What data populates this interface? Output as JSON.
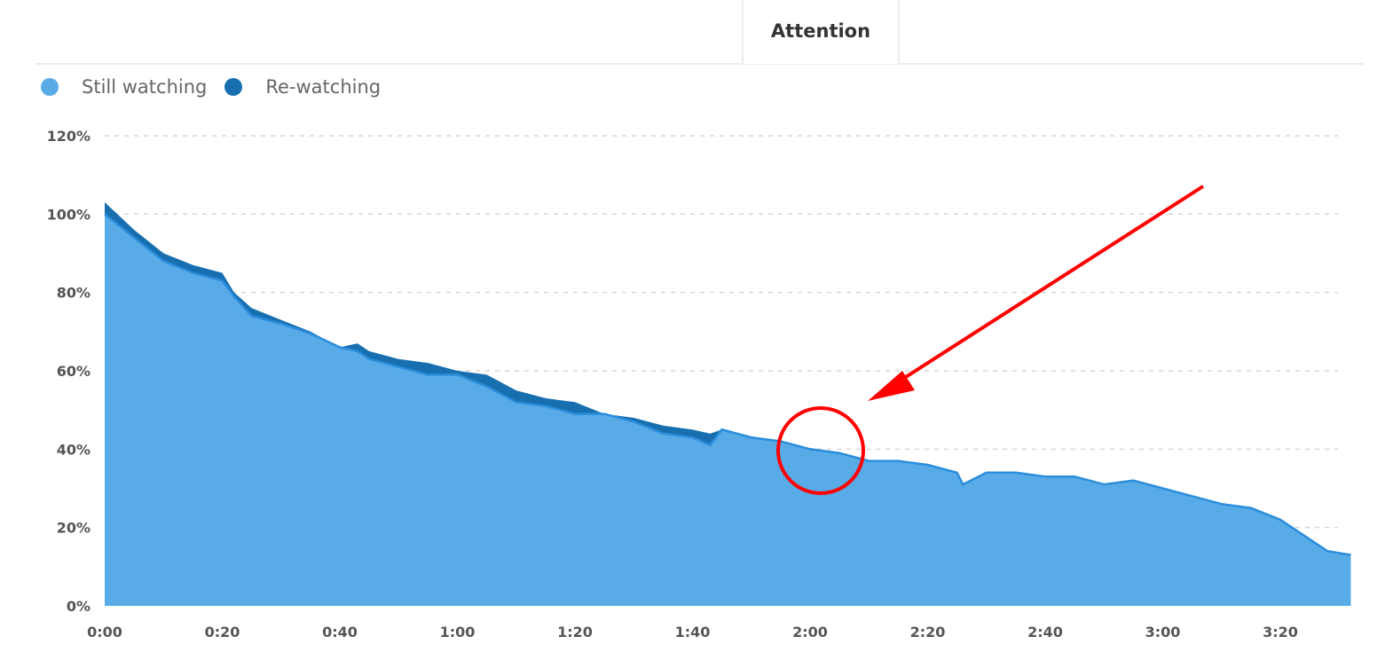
{
  "tab": {
    "label": "Attention"
  },
  "chart_data": {
    "type": "area",
    "title": "",
    "xlabel": "",
    "ylabel": "",
    "x_unit": "seconds",
    "xlim": [
      0,
      212
    ],
    "ylim": [
      0,
      120
    ],
    "grid": true,
    "legend_placement": "top-left",
    "x_ticks": [
      "0:00",
      "0:20",
      "0:40",
      "1:00",
      "1:20",
      "1:40",
      "2:00",
      "2:20",
      "2:40",
      "3:00",
      "3:20"
    ],
    "y_ticks": [
      "0%",
      "20%",
      "40%",
      "60%",
      "80%",
      "100%",
      "120%"
    ],
    "x": [
      0,
      5,
      10,
      15,
      20,
      22,
      25,
      30,
      35,
      40,
      43,
      45,
      50,
      55,
      60,
      65,
      70,
      75,
      80,
      85,
      90,
      95,
      100,
      103,
      105,
      110,
      115,
      120,
      125,
      130,
      135,
      140,
      145,
      146,
      150,
      155,
      160,
      165,
      170,
      175,
      180,
      185,
      190,
      195,
      200,
      205,
      208,
      212
    ],
    "series": [
      {
        "name": "Still watching",
        "color": "#58abe7",
        "values": [
          100,
          94,
          88,
          85,
          83,
          79,
          74,
          72,
          69.5,
          66,
          65,
          63,
          61,
          59,
          59,
          56,
          52,
          51,
          49,
          49,
          47,
          44,
          43,
          41,
          45,
          43,
          42,
          40,
          39,
          37,
          37,
          36,
          34,
          31,
          34,
          34,
          33,
          33,
          31,
          32,
          30,
          28,
          26,
          25,
          22,
          17,
          14,
          13
        ]
      },
      {
        "name": "Re-watching",
        "color": "#176fb0",
        "stacked_total": true,
        "values": [
          103,
          96,
          90,
          87,
          85,
          80,
          76,
          73,
          70,
          66,
          67,
          65,
          63,
          62,
          60,
          59,
          55,
          53,
          52,
          49,
          48,
          46,
          45,
          44,
          45,
          43,
          42,
          40,
          39,
          37,
          37,
          36,
          34,
          31,
          34,
          34,
          33,
          33,
          31,
          32,
          30,
          28,
          26,
          25,
          22,
          17,
          14,
          13
        ]
      }
    ],
    "annotation": {
      "type": "red arrow and circle",
      "target_x": "2:00",
      "color": "#ff0000"
    }
  }
}
